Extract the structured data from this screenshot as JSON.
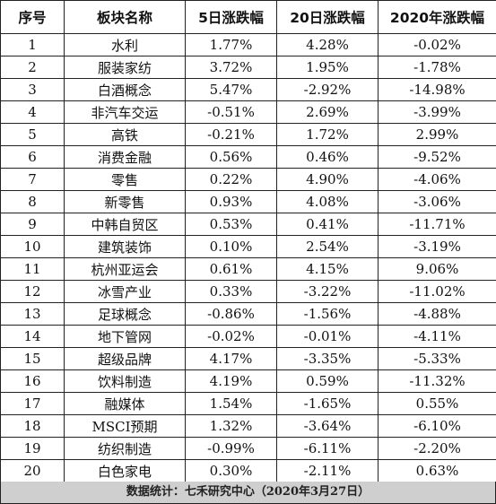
{
  "headers": [
    "序号",
    "板块名称",
    "5日涨跌幅",
    "20日涨跌幅",
    "2020年涨跌幅"
  ],
  "rows": [
    [
      "1",
      "水利",
      "1.77%",
      "4.28%",
      "-0.02%"
    ],
    [
      "2",
      "服装家纺",
      "3.72%",
      "1.95%",
      "-1.78%"
    ],
    [
      "3",
      "白酒概念",
      "5.47%",
      "-2.92%",
      "-14.98%"
    ],
    [
      "4",
      "非汽车交运",
      "-0.51%",
      "2.69%",
      "-3.99%"
    ],
    [
      "5",
      "高铁",
      "-0.21%",
      "1.72%",
      "2.99%"
    ],
    [
      "6",
      "消费金融",
      "0.56%",
      "0.46%",
      "-9.52%"
    ],
    [
      "7",
      "零售",
      "0.22%",
      "4.90%",
      "-4.06%"
    ],
    [
      "8",
      "新零售",
      "0.93%",
      "4.08%",
      "-3.06%"
    ],
    [
      "9",
      "中韩自贸区",
      "0.53%",
      "0.41%",
      "-11.71%"
    ],
    [
      "10",
      "建筑装饰",
      "0.10%",
      "2.54%",
      "-3.19%"
    ],
    [
      "11",
      "杭州亚运会",
      "0.61%",
      "4.15%",
      "9.06%"
    ],
    [
      "12",
      "冰雪产业",
      "0.33%",
      "-3.22%",
      "-11.02%"
    ],
    [
      "13",
      "足球概念",
      "-0.86%",
      "-1.56%",
      "-4.88%"
    ],
    [
      "14",
      "地下管网",
      "-0.02%",
      "-0.01%",
      "-4.11%"
    ],
    [
      "15",
      "超级品牌",
      "4.17%",
      "-3.35%",
      "-5.33%"
    ],
    [
      "16",
      "饮料制造",
      "4.19%",
      "0.59%",
      "-11.32%"
    ],
    [
      "17",
      "融媒体",
      "1.54%",
      "-1.65%",
      "0.55%"
    ],
    [
      "18",
      "MSCI预期",
      "1.32%",
      "-3.64%",
      "-6.10%"
    ],
    [
      "19",
      "纺织制造",
      "-0.99%",
      "-6.11%",
      "-2.20%"
    ],
    [
      "20",
      "白色家电",
      "0.30%",
      "-2.11%",
      "0.63%"
    ]
  ],
  "footer": "数据统计：七禾研究中心（2020年3月27日）"
}
